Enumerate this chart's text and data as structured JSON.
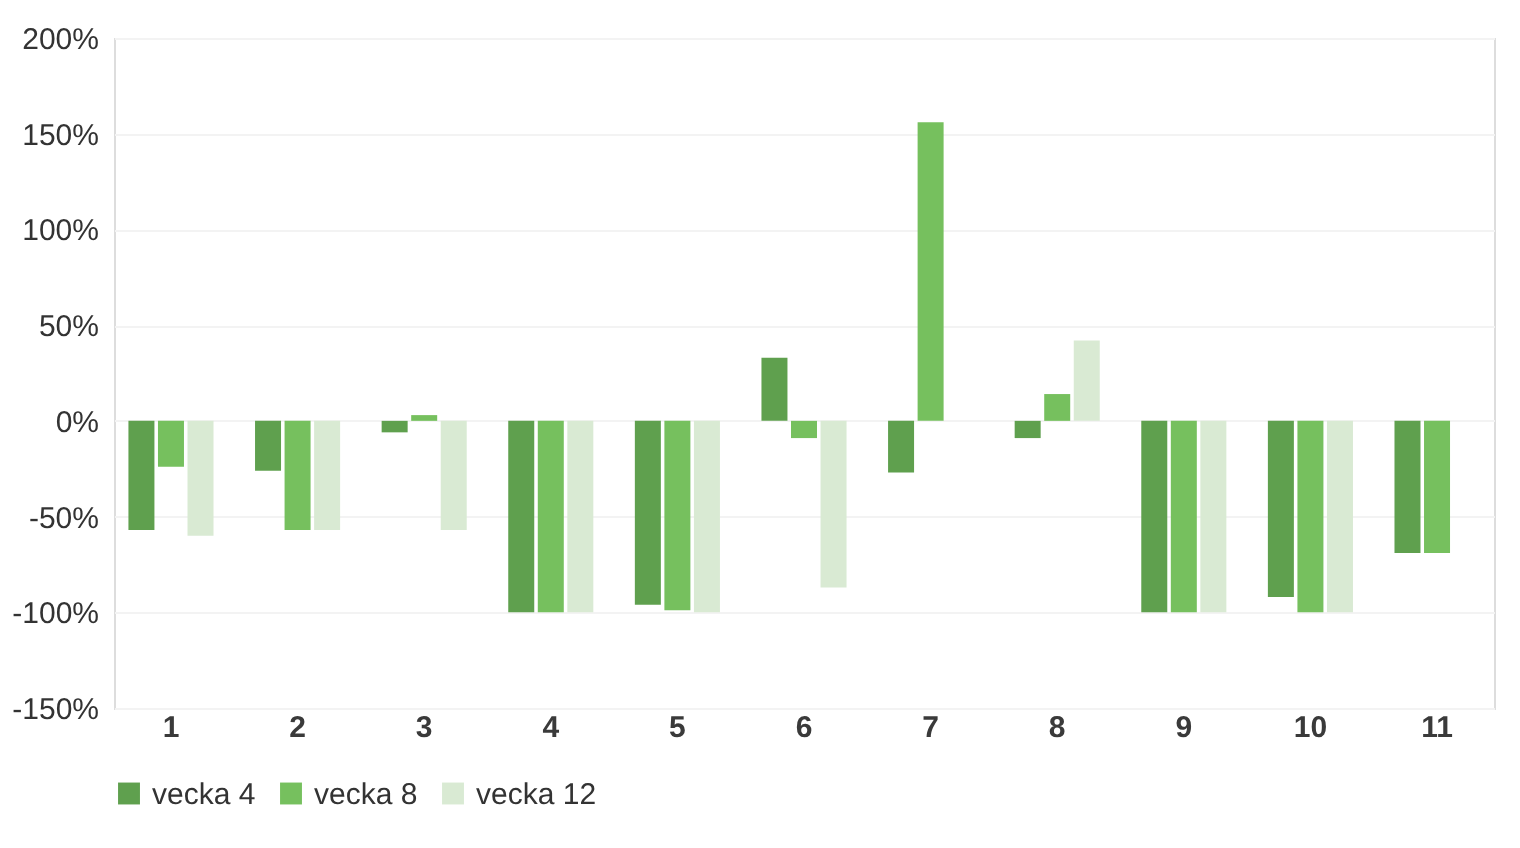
{
  "chart_data": {
    "type": "bar",
    "categories": [
      "1",
      "2",
      "3",
      "4",
      "5",
      "6",
      "7",
      "8",
      "9",
      "10",
      "11"
    ],
    "series": [
      {
        "name": "vecka 4",
        "color": "#5fa04e",
        "values": [
          -57,
          -26,
          -6,
          -100,
          -96,
          33,
          -27,
          -9,
          -100,
          -92,
          -69
        ]
      },
      {
        "name": "vecka 8",
        "color": "#76c05e",
        "values": [
          -24,
          -57,
          3,
          -100,
          -99,
          -9,
          156,
          14,
          -100,
          -100,
          -69
        ]
      },
      {
        "name": "vecka 12",
        "color": "#d9ead3",
        "values": [
          -60,
          -57,
          -57,
          -100,
          -100,
          -87,
          null,
          42,
          -100,
          -100,
          null
        ]
      }
    ],
    "ylim": [
      -150,
      200
    ],
    "yticks": [
      {
        "value": -150,
        "label": "-150%"
      },
      {
        "value": -100,
        "label": "-100%"
      },
      {
        "value": -50,
        "label": "-50%"
      },
      {
        "value": 0,
        "label": "0%"
      },
      {
        "value": 50,
        "label": "50%"
      },
      {
        "value": 100,
        "label": "100%"
      },
      {
        "value": 150,
        "label": "150%"
      },
      {
        "value": 200,
        "label": "200%"
      }
    ],
    "grid": "y",
    "legend": "bottom"
  }
}
